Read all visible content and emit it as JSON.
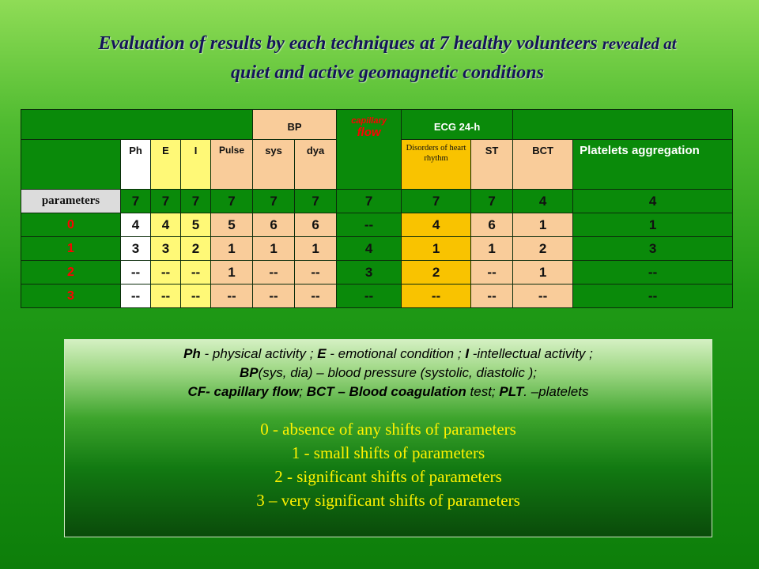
{
  "title": {
    "line1_big": "Evaluation of results by each techniques at 7 healthy volunteers ",
    "line1_small": "revealed at",
    "line2": "quiet and active geomagnetic conditions"
  },
  "table": {
    "header": {
      "bp": "BP",
      "capillary": "capillary",
      "flow": "flow",
      "ecg": "ECG  24-h",
      "ph": "Ph",
      "e": "E",
      "i": "I",
      "pulse": "Pulse",
      "sys": "sys",
      "dya": "dya",
      "disorders": "Disorders of heart rhythm",
      "st": "ST",
      "bct": "BCT",
      "platelets": "Platelets aggregation"
    },
    "rows": [
      {
        "label": "parameters",
        "values": [
          "7",
          "7",
          "7",
          "7",
          "7",
          "7",
          "7",
          "7",
          "7",
          "4",
          "4"
        ]
      },
      {
        "label": "0",
        "values": [
          "4",
          "4",
          "5",
          "5",
          "6",
          "6",
          "--",
          "4",
          "6",
          "1",
          "1"
        ]
      },
      {
        "label": "1",
        "values": [
          "3",
          "3",
          "2",
          "1",
          "1",
          "1",
          "4",
          "1",
          "1",
          "2",
          "3"
        ]
      },
      {
        "label": "2",
        "values": [
          "--",
          "--",
          "--",
          "1",
          "--",
          "--",
          "3",
          "2",
          "--",
          "1",
          "--"
        ]
      },
      {
        "label": "3",
        "values": [
          "--",
          "--",
          "--",
          "--",
          "--",
          "--",
          "--",
          "--",
          "--",
          "--",
          "--"
        ]
      }
    ]
  },
  "legend": {
    "abbr1": [
      {
        "b": "Ph",
        "t": " - physical activity ; "
      },
      {
        "b": "E",
        "t": " - emotional condition ; "
      },
      {
        "b": "I",
        "t": " -intellectual activity ;"
      }
    ],
    "abbr2": [
      {
        "b": "BP",
        "t": "(sys, dia) – blood pressure   (systolic, diastolic );"
      }
    ],
    "abbr3": [
      {
        "b": "CF- capillary flow",
        "t": ";  "
      },
      {
        "b": "BCT – Blood coagulation",
        "t": " test; "
      },
      {
        "b": "PLT",
        "t": ". –platelets"
      }
    ],
    "codes": [
      "0 - absence of any shifts of parameters",
      "1 - small shifts of parameters",
      "2 - significant shifts of parameters",
      "3 – very significant shifts of parameters"
    ]
  }
}
